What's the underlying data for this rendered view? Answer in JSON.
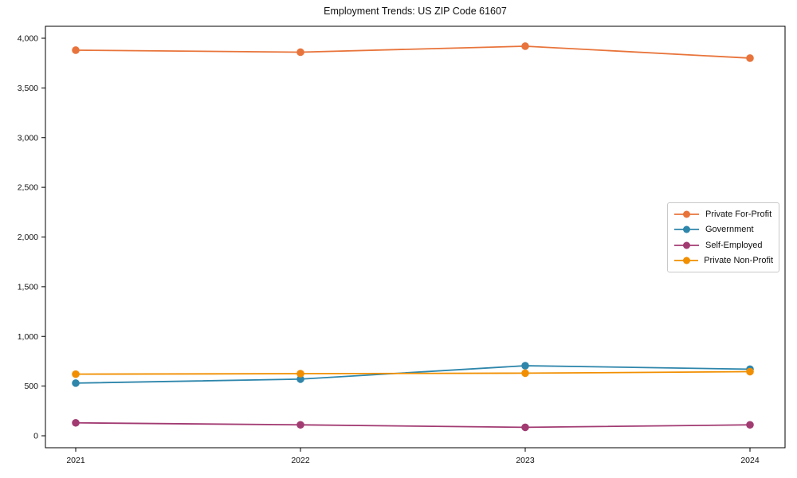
{
  "figure": {
    "title": "Employment Trends: US ZIP Code 61607"
  },
  "chart_data": {
    "type": "line",
    "title": "Employment Trends: US ZIP Code 61607",
    "x": [
      2021,
      2022,
      2023,
      2024
    ],
    "x_labels": [
      "2021",
      "2022",
      "2023",
      "2024"
    ],
    "series": [
      {
        "name": "Private For-Profit",
        "color": "#E8743B",
        "values": [
          3880,
          3860,
          3920,
          3800
        ]
      },
      {
        "name": "Government",
        "color": "#2E86AB",
        "values": [
          530,
          570,
          705,
          670
        ]
      },
      {
        "name": "Self-Employed",
        "color": "#A23B72",
        "values": [
          130,
          110,
          85,
          110
        ]
      },
      {
        "name": "Private Non-Profit",
        "color": "#F18F01",
        "values": [
          620,
          625,
          630,
          645
        ]
      }
    ],
    "ylim": [
      0,
      4000
    ],
    "ytick_step": 500,
    "ytick_labels": [
      "0",
      "500",
      "1,000",
      "1,500",
      "2,000",
      "2,500",
      "3,000",
      "3,500",
      "4,000"
    ],
    "grid": false,
    "marker": "circle",
    "legend_position": "center-right",
    "axis_color": "#000000",
    "text_color": "#111111",
    "plot_background": "#ffffff"
  }
}
